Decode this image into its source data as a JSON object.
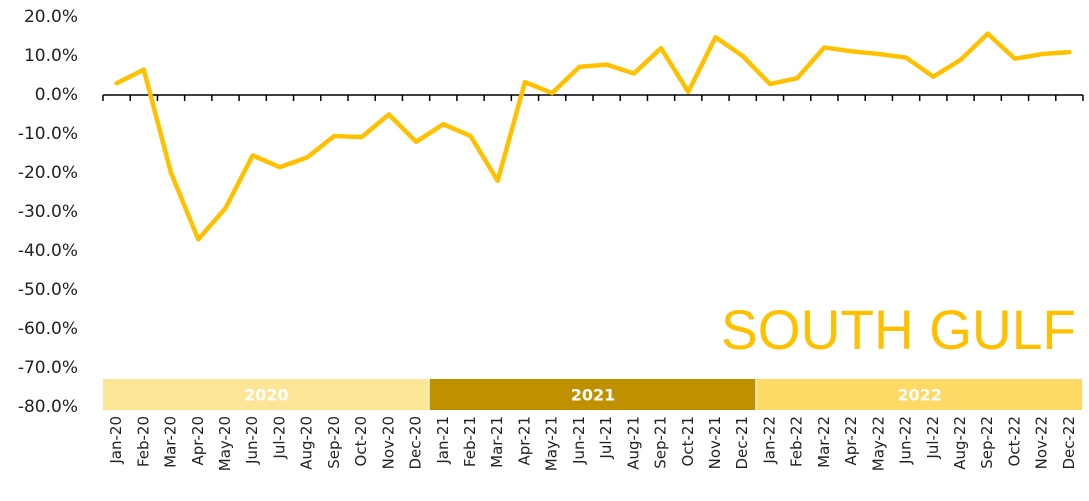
{
  "chart_data": {
    "type": "line",
    "annotation": "SOUTH GULF",
    "categories": [
      "Jan-20",
      "Feb-20",
      "Mar-20",
      "Apr-20",
      "May-20",
      "Jun-20",
      "Jul-20",
      "Aug-20",
      "Sep-20",
      "Oct-20",
      "Nov-20",
      "Dec-20",
      "Jan-21",
      "Feb-21",
      "Mar-21",
      "Apr-21",
      "May-21",
      "Jun-21",
      "Jul-21",
      "Aug-21",
      "Sep-21",
      "Oct-21",
      "Nov-21",
      "Dec-21",
      "Jan-22",
      "Feb-22",
      "Mar-22",
      "Apr-22",
      "May-22",
      "Jun-22",
      "Jul-22",
      "Aug-22",
      "Sep-22",
      "Oct-22",
      "Nov-22",
      "Dec-22"
    ],
    "values": [
      3,
      6.5,
      -20,
      -37,
      -29,
      -15.5,
      -18.5,
      -16,
      -10.5,
      -10.8,
      -5,
      -12,
      -7.5,
      -10.5,
      -22,
      3.3,
      0.5,
      7.2,
      7.8,
      5.5,
      12,
      0.8,
      14.8,
      10,
      2.8,
      4.3,
      12.2,
      11.2,
      10.5,
      9.6,
      4.7,
      9,
      15.7,
      9.3,
      10.5,
      11
    ],
    "color": "#ffc000",
    "year_groups": [
      {
        "label": "2020",
        "color": "#fde597",
        "span": 12
      },
      {
        "label": "2021",
        "color": "#bf9000",
        "span": 12
      },
      {
        "label": "2022",
        "color": "#ffd966",
        "span": 12
      }
    ],
    "ylim": [
      -80,
      20
    ],
    "yticks": [
      {
        "value": -80,
        "label": "-80.0%"
      },
      {
        "value": -70,
        "label": "-70.0%"
      },
      {
        "value": -60,
        "label": "-60.0%"
      },
      {
        "value": -50,
        "label": "-50.0%"
      },
      {
        "value": -40,
        "label": "-40.0%"
      },
      {
        "value": -30,
        "label": "-30.0%"
      },
      {
        "value": -20,
        "label": "-20.0%"
      },
      {
        "value": -10,
        "label": "-10.0%"
      },
      {
        "value": 0,
        "label": "0.0%"
      },
      {
        "value": 10,
        "label": "10.0%"
      },
      {
        "value": 20,
        "label": "20.0%"
      }
    ],
    "grid": false
  }
}
